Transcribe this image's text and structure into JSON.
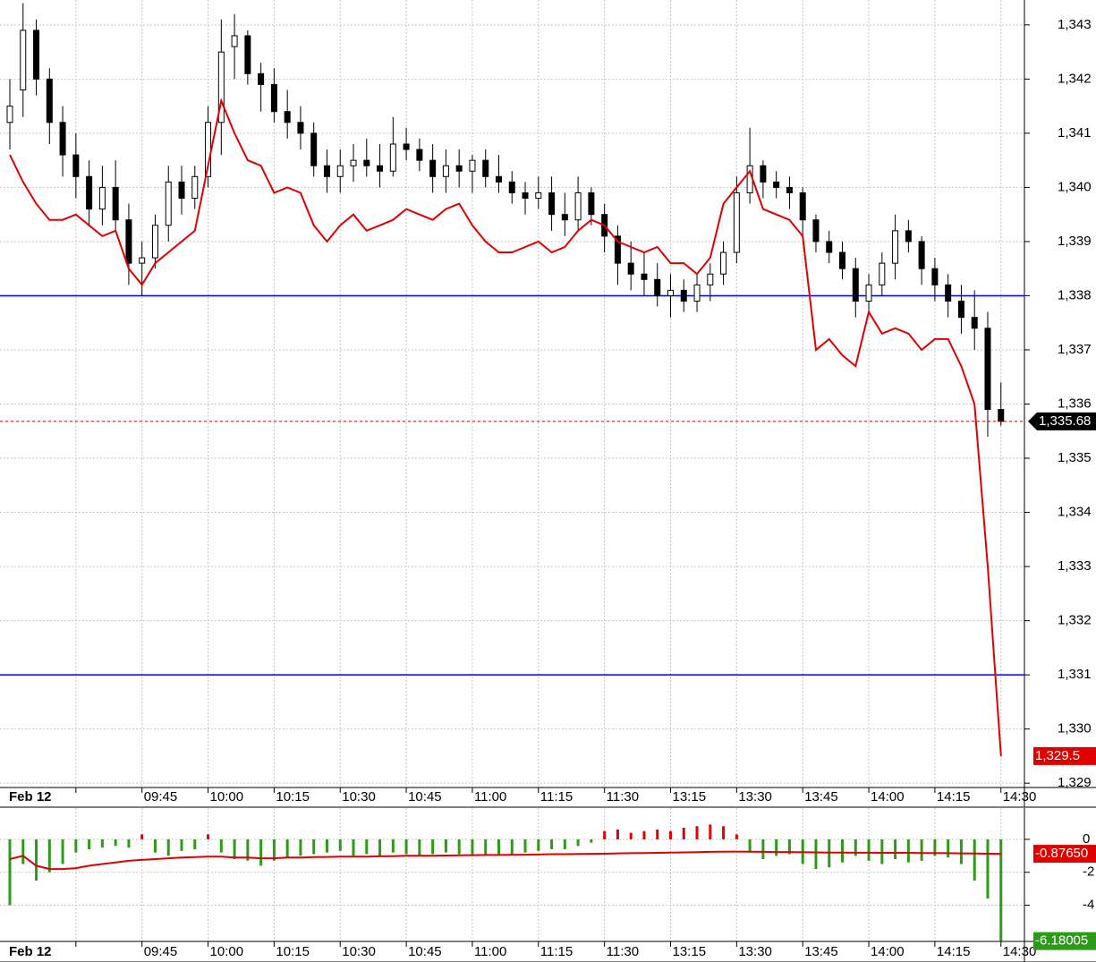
{
  "chart_data": [
    {
      "type": "candlestick",
      "x_date_label": "Feb 12",
      "categories": [
        null,
        null,
        null,
        null,
        null,
        null,
        null,
        null,
        null,
        null,
        "09:45",
        null,
        null,
        null,
        null,
        "10:00",
        null,
        null,
        null,
        null,
        "10:15",
        null,
        null,
        null,
        null,
        "10:30",
        null,
        null,
        null,
        null,
        "10:45",
        null,
        null,
        null,
        null,
        "11:00",
        null,
        null,
        null,
        null,
        "11:15",
        null,
        null,
        null,
        null,
        "11:30",
        null,
        null,
        null,
        null,
        "13:15",
        null,
        null,
        null,
        null,
        "13:30",
        null,
        null,
        null,
        null,
        "13:45",
        null,
        null,
        null,
        null,
        "14:00",
        null,
        null,
        null,
        null,
        "14:15",
        null,
        null,
        null,
        null,
        "14:30"
      ],
      "open": [
        1341.2,
        1341.8,
        1342.9,
        1342.0,
        1341.2,
        1340.6,
        1340.2,
        1339.6,
        1340.0,
        1339.4,
        1338.6,
        1338.7,
        1339.3,
        1340.1,
        1339.8,
        1340.2,
        1341.2,
        1342.6,
        1342.8,
        1342.1,
        1341.9,
        1341.4,
        1341.2,
        1341.0,
        1340.4,
        1340.2,
        1340.4,
        1340.5,
        1340.4,
        1340.3,
        1340.8,
        1340.7,
        1340.5,
        1340.2,
        1340.4,
        1340.3,
        1340.5,
        1340.2,
        1340.1,
        1339.9,
        1339.8,
        1339.9,
        1339.5,
        1339.4,
        1339.9,
        1339.5,
        1339.1,
        1338.6,
        1338.4,
        1338.3,
        1338.0,
        1338.1,
        1337.9,
        1338.2,
        1338.4,
        1338.8,
        1339.9,
        1340.4,
        1340.1,
        1340.0,
        1339.9,
        1339.4,
        1339.0,
        1338.8,
        1338.5,
        1337.9,
        1338.2,
        1338.6,
        1339.2,
        1339.0,
        1338.5,
        1338.2,
        1337.9,
        1337.6,
        1337.4,
        1335.9
      ],
      "high": [
        1342.0,
        1343.4,
        1343.1,
        1342.2,
        1341.5,
        1341.0,
        1340.5,
        1340.4,
        1340.5,
        1339.7,
        1339.0,
        1339.5,
        1340.4,
        1340.4,
        1340.4,
        1341.5,
        1343.1,
        1343.2,
        1342.9,
        1342.3,
        1342.2,
        1341.8,
        1341.5,
        1341.2,
        1340.7,
        1340.7,
        1340.8,
        1340.9,
        1340.8,
        1341.3,
        1341.1,
        1340.9,
        1340.8,
        1340.7,
        1340.7,
        1340.6,
        1340.7,
        1340.6,
        1340.3,
        1340.1,
        1340.2,
        1340.2,
        1339.9,
        1340.2,
        1340.0,
        1339.7,
        1339.3,
        1339.0,
        1338.8,
        1338.6,
        1338.4,
        1338.3,
        1338.4,
        1338.6,
        1339.0,
        1340.2,
        1341.1,
        1340.5,
        1340.3,
        1340.2,
        1340.0,
        1339.5,
        1339.2,
        1339.0,
        1338.7,
        1338.4,
        1338.8,
        1339.5,
        1339.4,
        1339.1,
        1338.7,
        1338.4,
        1338.2,
        1338.1,
        1337.7,
        1336.4
      ],
      "low": [
        1340.7,
        1341.3,
        1341.7,
        1340.8,
        1340.2,
        1339.8,
        1339.3,
        1339.3,
        1339.2,
        1338.2,
        1338.0,
        1338.5,
        1339.0,
        1339.5,
        1339.6,
        1340.0,
        1340.6,
        1342.0,
        1341.9,
        1341.4,
        1341.2,
        1340.9,
        1340.7,
        1340.2,
        1339.9,
        1339.9,
        1340.1,
        1340.2,
        1340.0,
        1340.2,
        1340.5,
        1340.3,
        1339.9,
        1339.9,
        1340.0,
        1339.9,
        1340.0,
        1339.9,
        1339.7,
        1339.5,
        1339.6,
        1339.2,
        1339.1,
        1339.2,
        1339.3,
        1338.8,
        1338.2,
        1338.1,
        1338.0,
        1337.8,
        1337.6,
        1337.7,
        1337.7,
        1337.9,
        1338.2,
        1338.6,
        1339.7,
        1339.8,
        1339.8,
        1339.6,
        1339.1,
        1338.8,
        1338.6,
        1338.3,
        1337.6,
        1337.7,
        1338.0,
        1338.3,
        1338.8,
        1338.2,
        1337.9,
        1337.6,
        1337.3,
        1337.0,
        1335.4,
        1335.6
      ],
      "close": [
        1341.5,
        1342.9,
        1342.0,
        1341.2,
        1340.6,
        1340.2,
        1339.6,
        1340.0,
        1339.4,
        1338.6,
        1338.7,
        1339.3,
        1340.1,
        1339.8,
        1340.2,
        1341.2,
        1342.5,
        1342.8,
        1342.1,
        1341.9,
        1341.4,
        1341.2,
        1341.0,
        1340.4,
        1340.2,
        1340.4,
        1340.5,
        1340.4,
        1340.3,
        1340.8,
        1340.7,
        1340.5,
        1340.2,
        1340.4,
        1340.3,
        1340.5,
        1340.2,
        1340.1,
        1339.9,
        1339.8,
        1339.9,
        1339.5,
        1339.4,
        1339.9,
        1339.5,
        1339.1,
        1338.6,
        1338.4,
        1338.3,
        1338.0,
        1338.1,
        1337.9,
        1338.2,
        1338.4,
        1338.8,
        1339.9,
        1340.4,
        1340.1,
        1340.0,
        1339.9,
        1339.4,
        1339.0,
        1338.8,
        1338.5,
        1337.9,
        1338.2,
        1338.6,
        1339.2,
        1339.0,
        1338.5,
        1338.2,
        1337.9,
        1337.6,
        1337.4,
        1335.9,
        1335.68
      ],
      "last_close_label": "1,335.68",
      "candle_color": "#000000",
      "line_values": [
        1340.6,
        1340.1,
        1339.7,
        1339.4,
        1339.4,
        1339.5,
        1339.3,
        1339.1,
        1339.2,
        1338.5,
        1338.2,
        1338.6,
        1338.8,
        1339.0,
        1339.2,
        1340.4,
        1341.6,
        1341.0,
        1340.5,
        1340.4,
        1339.9,
        1340.0,
        1339.9,
        1339.3,
        1339.0,
        1339.3,
        1339.5,
        1339.2,
        1339.3,
        1339.4,
        1339.6,
        1339.5,
        1339.4,
        1339.6,
        1339.7,
        1339.3,
        1339.0,
        1338.8,
        1338.8,
        1338.9,
        1339.0,
        1338.8,
        1338.9,
        1339.2,
        1339.4,
        1339.3,
        1339.0,
        1338.9,
        1338.8,
        1338.9,
        1338.6,
        1338.6,
        1338.4,
        1338.7,
        1339.7,
        1340.0,
        1340.3,
        1339.6,
        1339.5,
        1339.4,
        1339.1,
        1337.0,
        1337.2,
        1336.9,
        1336.7,
        1337.7,
        1337.3,
        1337.4,
        1337.3,
        1337.0,
        1337.2,
        1337.2,
        1336.7,
        1336.0,
        1333.0,
        1329.5
      ],
      "line_color": "#e00000",
      "last_line_label": "1,329.5",
      "hlines": [
        1338,
        1331
      ],
      "hline_color": "#0000ff",
      "ylim": [
        1328.92,
        1343.46
      ],
      "yticks": [
        {
          "value": 1329,
          "label": "1,329"
        },
        {
          "value": 1330,
          "label": "1,330"
        },
        {
          "value": 1331,
          "label": "1,331"
        },
        {
          "value": 1332,
          "label": "1,332"
        },
        {
          "value": 1333,
          "label": "1,333"
        },
        {
          "value": 1334,
          "label": "1,334"
        },
        {
          "value": 1335,
          "label": "1,335"
        },
        {
          "value": 1336,
          "label": "1,336"
        },
        {
          "value": 1337,
          "label": "1,337"
        },
        {
          "value": 1338,
          "label": "1,338"
        },
        {
          "value": 1339,
          "label": "1,339"
        },
        {
          "value": 1340,
          "label": "1,340"
        },
        {
          "value": 1341,
          "label": "1,341"
        },
        {
          "value": 1342,
          "label": "1,342"
        },
        {
          "value": 1343,
          "label": "1,343"
        }
      ],
      "grid": true
    },
    {
      "type": "histogram",
      "x_date_label": "Feb 12",
      "categories": [
        null,
        null,
        null,
        null,
        null,
        null,
        null,
        null,
        null,
        null,
        "09:45",
        null,
        null,
        null,
        null,
        "10:00",
        null,
        null,
        null,
        null,
        "10:15",
        null,
        null,
        null,
        null,
        "10:30",
        null,
        null,
        null,
        null,
        "10:45",
        null,
        null,
        null,
        null,
        "11:00",
        null,
        null,
        null,
        null,
        "11:15",
        null,
        null,
        null,
        null,
        "11:30",
        null,
        null,
        null,
        null,
        "13:15",
        null,
        null,
        null,
        null,
        "13:30",
        null,
        null,
        null,
        null,
        "13:45",
        null,
        null,
        null,
        null,
        "14:00",
        null,
        null,
        null,
        null,
        "14:15",
        null,
        null,
        null,
        null,
        "14:30"
      ],
      "values": [
        -4.0,
        -1.5,
        -2.5,
        -2.0,
        -1.5,
        -0.8,
        -0.6,
        -0.5,
        -0.4,
        -0.5,
        0.3,
        -0.8,
        -1.0,
        -0.7,
        -0.6,
        0.3,
        -0.8,
        -1.2,
        -1.3,
        -1.6,
        -1.3,
        -1.1,
        -1.0,
        -0.9,
        -0.8,
        -0.7,
        -1.0,
        -0.9,
        -1.0,
        -0.8,
        -0.9,
        -1.0,
        -0.9,
        -0.8,
        -0.9,
        -1.0,
        -1.0,
        -0.9,
        -0.9,
        -0.8,
        -0.7,
        -0.6,
        -0.6,
        -0.4,
        -0.2,
        0.5,
        0.6,
        0.4,
        0.5,
        0.6,
        0.5,
        0.7,
        0.8,
        0.9,
        0.8,
        0.3,
        -0.8,
        -1.2,
        -1.0,
        -0.9,
        -1.5,
        -1.8,
        -1.7,
        -1.4,
        -1.0,
        -1.3,
        -1.5,
        -1.2,
        -1.4,
        -1.3,
        -1.0,
        -1.1,
        -1.5,
        -2.5,
        -3.6,
        -6.18005
      ],
      "last_value_label": "-6.18005",
      "up_color": "#e00000",
      "down_color": "#2e9a1a",
      "line_values": [
        -1.2,
        -1.0,
        -1.6,
        -1.8,
        -1.8,
        -1.75,
        -1.6,
        -1.5,
        -1.4,
        -1.3,
        -1.25,
        -1.2,
        -1.15,
        -1.1,
        -1.08,
        -1.05,
        -1.05,
        -1.1,
        -1.1,
        -1.15,
        -1.15,
        -1.1,
        -1.1,
        -1.08,
        -1.07,
        -1.05,
        -1.05,
        -1.05,
        -1.03,
        -1.02,
        -1.0,
        -1.0,
        -0.99,
        -0.98,
        -0.97,
        -0.96,
        -0.95,
        -0.95,
        -0.94,
        -0.93,
        -0.92,
        -0.9,
        -0.9,
        -0.89,
        -0.88,
        -0.87,
        -0.85,
        -0.84,
        -0.83,
        -0.82,
        -0.8,
        -0.79,
        -0.78,
        -0.76,
        -0.75,
        -0.74,
        -0.75,
        -0.76,
        -0.77,
        -0.77,
        -0.78,
        -0.79,
        -0.8,
        -0.8,
        -0.81,
        -0.81,
        -0.82,
        -0.82,
        -0.82,
        -0.83,
        -0.83,
        -0.84,
        -0.85,
        -0.86,
        -0.87,
        -0.8765
      ],
      "line_color": "#e00000",
      "last_line_label": "-0.87650",
      "ylim": [
        -6.2,
        1.9
      ],
      "yticks": [
        0,
        -2,
        -4
      ],
      "grid": true
    }
  ]
}
